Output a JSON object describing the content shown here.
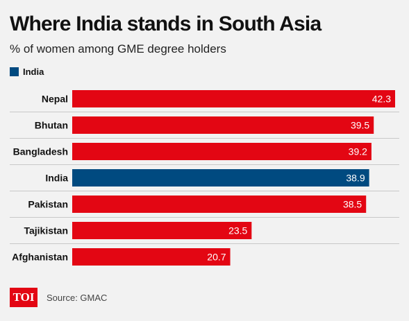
{
  "title": "Where India stands in South Asia",
  "subtitle": "% of women among GME degree holders",
  "legend": {
    "label": "India",
    "color": "#004a80"
  },
  "colors": {
    "bar": "#e30613",
    "highlight": "#004a80",
    "grid": "#c8c8c8"
  },
  "footer": {
    "logo_text": "TOI",
    "source": "Source: GMAC"
  },
  "chart_data": {
    "type": "bar",
    "orientation": "horizontal",
    "categories": [
      "Nepal",
      "Bhutan",
      "Bangladesh",
      "India",
      "Pakistan",
      "Tajikistan",
      "Afghanistan"
    ],
    "values": [
      42.3,
      39.5,
      39.2,
      38.9,
      38.5,
      23.5,
      20.7
    ],
    "value_labels": [
      "42.3",
      "39.5",
      "39.2",
      "38.9",
      "38.5",
      "23.5",
      "20.7"
    ],
    "highlight": "India",
    "xlim": [
      0,
      42.3
    ],
    "grid": true,
    "legend_position": "top-left"
  }
}
